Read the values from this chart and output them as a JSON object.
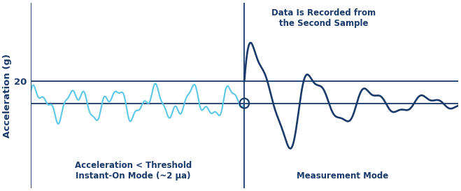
{
  "background_color": "#ffffff",
  "axis_color": "#1a3a6b",
  "ylabel": "Acceleration (g)",
  "ylabel_color": "#1a3a6b",
  "ytick_label": "20",
  "light_blue_color": "#5BC8E8",
  "dark_blue_color": "#1a3a6b",
  "annotation_top": "Data Is Recorded from\nthe Second Sample",
  "annotation_bottom_left": "Acceleration < Threshold\nInstant-On Mode (~2 μa)",
  "annotation_bottom_right": "Measurement Mode",
  "annotation_color": "#1a3a6b",
  "font_size_annotations": 8.5,
  "font_size_ylabel": 9.5,
  "font_size_ytick": 9.5,
  "threshold_line_y": 1.0,
  "baseline_y": 0.0,
  "ylim_min": -3.8,
  "ylim_max": 4.5,
  "xlim_min": -10,
  "xlim_max": 10,
  "divider_x": 0.0
}
